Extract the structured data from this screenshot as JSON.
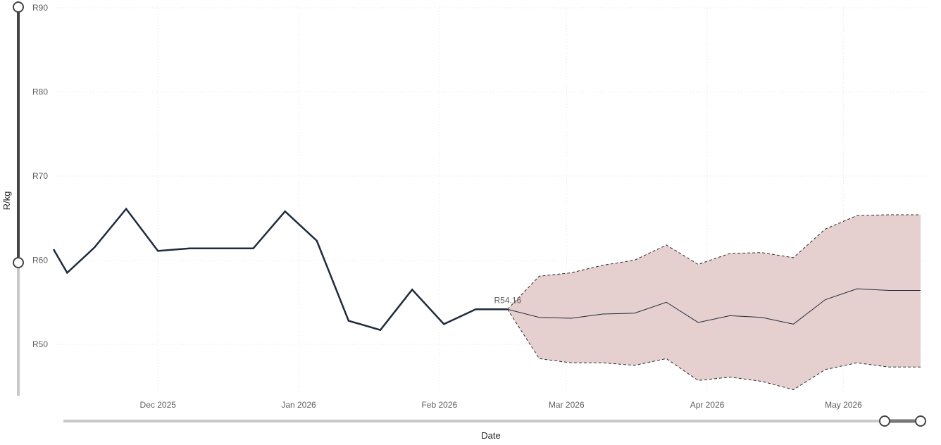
{
  "chart_data": {
    "type": "line",
    "title": "",
    "xlabel": "Date",
    "ylabel": "R/kg",
    "ylim": [
      44,
      90
    ],
    "x_tick_labels": [
      {
        "date": "2025-12-01",
        "label": "Dec 2025"
      },
      {
        "date": "2026-01-01",
        "label": "Jan 2026"
      },
      {
        "date": "2026-02-01",
        "label": "Feb 2026"
      },
      {
        "date": "2026-03-01",
        "label": "Mar 2026"
      },
      {
        "date": "2026-04-01",
        "label": "Apr 2026"
      },
      {
        "date": "2026-05-01",
        "label": "May 2026"
      }
    ],
    "y_ticks": [
      {
        "value": 50,
        "label": "R50"
      },
      {
        "value": 60,
        "label": "R60"
      },
      {
        "value": 70,
        "label": "R70"
      },
      {
        "value": 80,
        "label": "R80"
      },
      {
        "value": 90,
        "label": "R90"
      }
    ],
    "grid": true,
    "series": [
      {
        "x": [
          "2025-11-08",
          "2025-11-11",
          "2025-11-17",
          "2025-11-24",
          "2025-12-01",
          "2025-12-08",
          "2025-12-15",
          "2025-12-22",
          "2025-12-29",
          "2026-01-05",
          "2026-01-12",
          "2026-01-19",
          "2026-01-26",
          "2026-02-02",
          "2026-02-09",
          "2026-02-16"
        ],
        "values": [
          61.3,
          58.5,
          61.5,
          66.1,
          61.1,
          61.4,
          61.4,
          61.4,
          65.8,
          62.3,
          52.8,
          51.7,
          56.5,
          52.4,
          54.16,
          54.16
        ],
        "color": "#1f2a3c"
      },
      {
        "kind": "forecast",
        "x": [
          "2026-02-16",
          "2026-02-23",
          "2026-03-02",
          "2026-03-09",
          "2026-03-16",
          "2026-03-23",
          "2026-03-30",
          "2026-04-06",
          "2026-04-13",
          "2026-04-20",
          "2026-04-27",
          "2026-05-04",
          "2026-05-11",
          "2026-05-18"
        ],
        "values": [
          54.16,
          53.2,
          53.1,
          53.6,
          53.7,
          55.0,
          52.6,
          53.4,
          53.2,
          52.4,
          55.3,
          56.6,
          56.4,
          56.4
        ],
        "upper": [
          54.16,
          58.1,
          58.5,
          59.4,
          60.0,
          61.8,
          59.5,
          60.8,
          60.9,
          60.3,
          63.7,
          65.3,
          65.4,
          65.4
        ],
        "lower": [
          54.16,
          48.3,
          47.8,
          47.8,
          47.5,
          48.3,
          45.7,
          46.1,
          45.6,
          44.6,
          47.0,
          47.8,
          47.3,
          47.3
        ],
        "color": "#1f2a3c",
        "band_color": "#e6cfcf"
      }
    ],
    "data_labels": [
      {
        "x": "2026-02-16",
        "value": 54.16,
        "text": "R54.16"
      }
    ],
    "x_slider_range": [
      0.0,
      1.0
    ],
    "y_slider_range": [
      60,
      90
    ]
  }
}
